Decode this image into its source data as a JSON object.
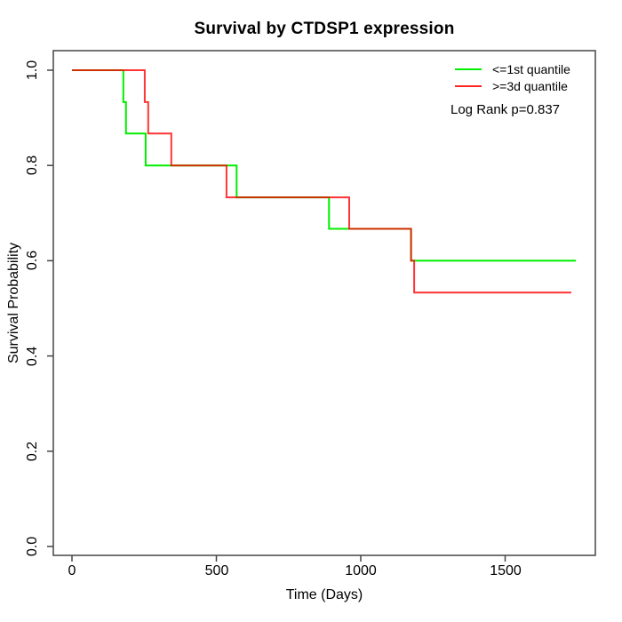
{
  "title": "Survival by CTDSP1 expression",
  "x_axis": {
    "label": "Time (Days)",
    "tick_labels": [
      "0",
      "500",
      "1000",
      "1500"
    ]
  },
  "y_axis": {
    "label": "Survival Probability",
    "tick_labels": [
      "1.0",
      "0.8",
      "0.6",
      "0.4",
      "0.2",
      "0.0"
    ]
  },
  "legend": {
    "items": [
      {
        "label": "<=1st quantile",
        "color": "#00ee00"
      },
      {
        "label": ">=3d quantile",
        "color": "#ff0000"
      }
    ]
  },
  "annotation": {
    "log_rank": "Log Rank p=0.837"
  },
  "colors": {
    "frame": "#454545",
    "text": "#000000",
    "background": "#ffffff"
  },
  "chart_data": {
    "type": "line",
    "subtype": "kaplan-meier-step",
    "title": "Survival by CTDSP1 expression",
    "xlabel": "Time (Days)",
    "ylabel": "Survival Probability",
    "xlim": [
      -65,
      1812
    ],
    "ylim": [
      0,
      1
    ],
    "x_ticks": [
      0,
      500,
      1000,
      1500
    ],
    "y_ticks": [
      1.0,
      0.8,
      0.6,
      0.4,
      0.2,
      0.0
    ],
    "grid": false,
    "legend_position": "top-right",
    "annotation": "Log Rank p=0.837",
    "series": [
      {
        "name": "<=1st quantile",
        "color": "#00ee00",
        "points": [
          [
            0,
            1.0
          ],
          [
            178,
            0.933
          ],
          [
            187,
            0.867
          ],
          [
            255,
            0.8
          ],
          [
            570,
            0.733
          ],
          [
            890,
            0.667
          ],
          [
            1174,
            0.6
          ],
          [
            1745,
            0.6
          ]
        ]
      },
      {
        "name": ">=3d quantile",
        "color": "#ff0000",
        "points": [
          [
            0,
            1.0
          ],
          [
            252,
            0.933
          ],
          [
            264,
            0.867
          ],
          [
            344,
            0.8
          ],
          [
            535,
            0.733
          ],
          [
            960,
            0.667
          ],
          [
            1174,
            0.6
          ],
          [
            1185,
            0.533
          ],
          [
            1729,
            0.533
          ]
        ]
      }
    ]
  }
}
